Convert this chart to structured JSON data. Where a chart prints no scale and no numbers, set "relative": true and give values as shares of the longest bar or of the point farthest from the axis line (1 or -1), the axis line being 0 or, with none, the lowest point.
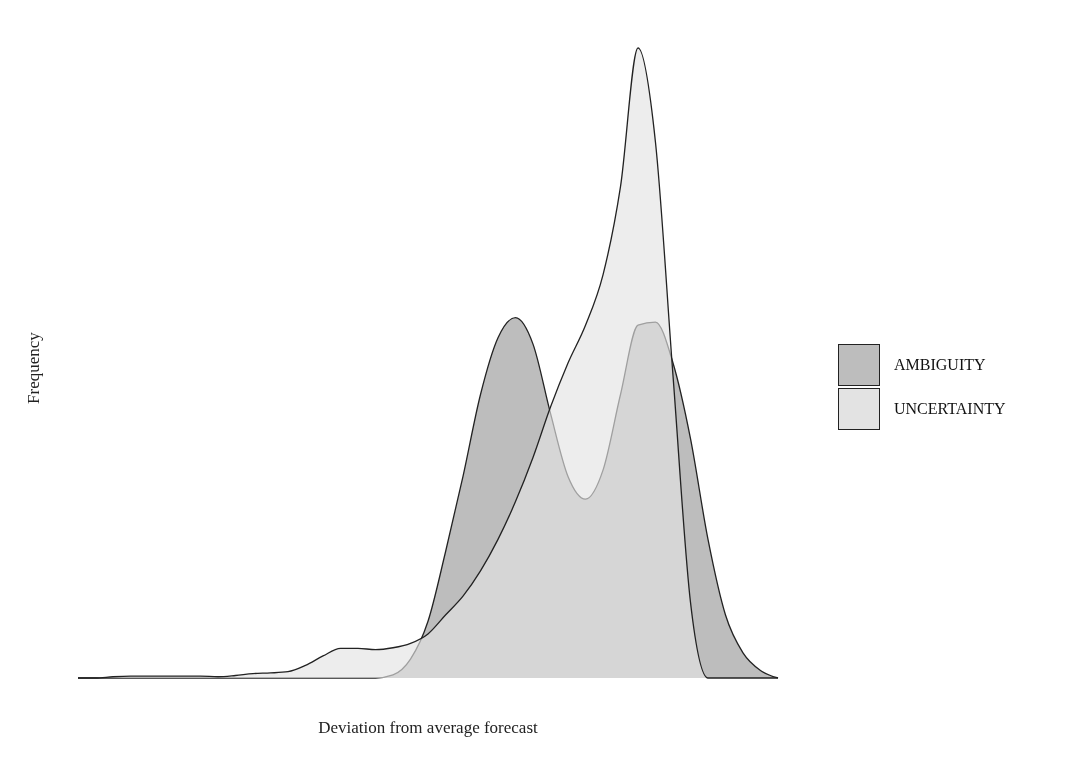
{
  "chart_data": {
    "type": "area",
    "relative": true,
    "xlabel": "Deviation from average forecast",
    "ylabel": "Frequency",
    "legend": "right",
    "grid": false,
    "categories": [
      null,
      null,
      null,
      null,
      null,
      null,
      null,
      null,
      null,
      null,
      null,
      null,
      null,
      null,
      null,
      null,
      null,
      null,
      null,
      null,
      null,
      null,
      null,
      null,
      null,
      null,
      null,
      null,
      null,
      null,
      null,
      null,
      null,
      null,
      null,
      null,
      null,
      null,
      null,
      null,
      null
    ],
    "series": [
      {
        "name": "AMBIGUITY",
        "color": "#bdbdbd",
        "values": [
          0,
          0,
          0,
          0,
          0,
          0,
          0,
          0,
          0,
          0,
          0,
          0,
          0,
          0,
          0,
          0,
          0,
          0,
          0.005,
          0.03,
          0.09,
          0.2,
          0.32,
          0.45,
          0.54,
          0.572,
          0.53,
          0.42,
          0.32,
          0.284,
          0.33,
          0.45,
          0.56,
          0.565,
          0.5,
          0.38,
          0.22,
          0.1,
          0.04,
          0.012,
          0
        ]
      },
      {
        "name": "UNCERTAINTY",
        "color": "#e3e3e3",
        "values": [
          0,
          0,
          0.002,
          0.003,
          0.003,
          0.003,
          0.003,
          0.003,
          0.002,
          0.004,
          0.007,
          0.008,
          0.01,
          0.02,
          0.035,
          0.047,
          0.047,
          0.045,
          0.048,
          0.055,
          0.07,
          0.1,
          0.13,
          0.17,
          0.22,
          0.28,
          0.35,
          0.43,
          0.5,
          0.56,
          0.64,
          0.78,
          1,
          0.85,
          0.48,
          0.12,
          0,
          0,
          0,
          0,
          0
        ]
      }
    ]
  }
}
